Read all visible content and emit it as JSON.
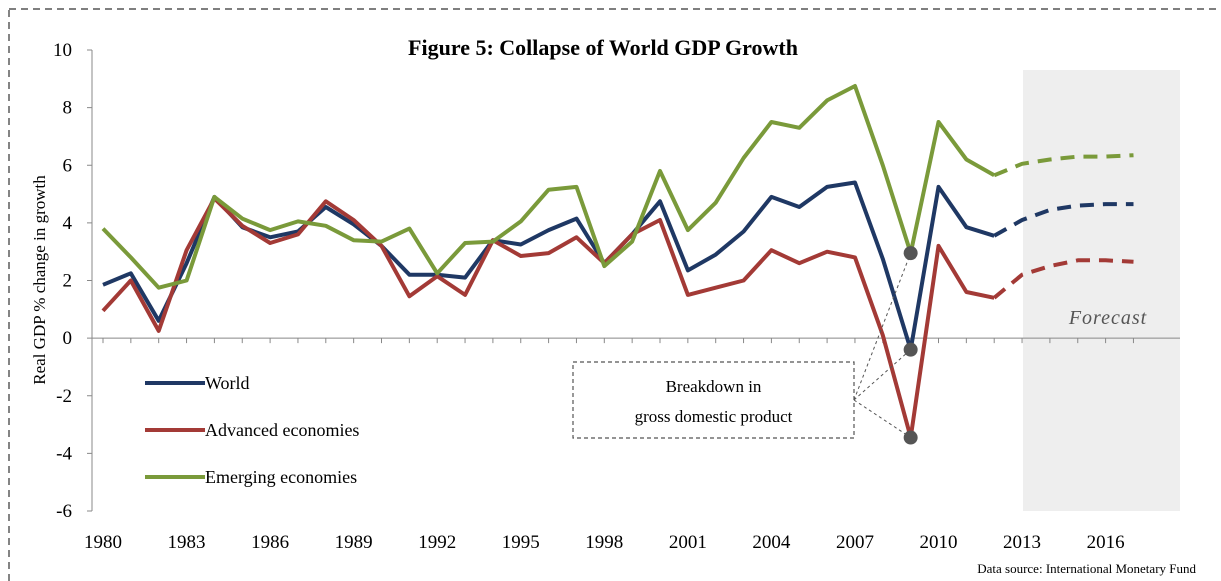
{
  "chart_data": {
    "type": "line",
    "title": "Figure 5: Collapse of World GDP Growth",
    "ylabel": "Real GDP % change in growth",
    "xlabel": "",
    "ylim": [
      -6,
      10
    ],
    "yticks": [
      -6,
      -4,
      -2,
      0,
      2,
      4,
      6,
      8,
      10
    ],
    "xlim": [
      1980,
      2017
    ],
    "xticks": [
      1980,
      1983,
      1986,
      1989,
      1992,
      1995,
      1998,
      2001,
      2004,
      2007,
      2010,
      2013,
      2016
    ],
    "forecast_start": 2012,
    "forecast_label": "Forecast",
    "grid": false,
    "legend_position": "lower-left",
    "x": [
      1980,
      1981,
      1982,
      1983,
      1984,
      1985,
      1986,
      1987,
      1988,
      1989,
      1990,
      1991,
      1992,
      1993,
      1994,
      1995,
      1996,
      1997,
      1998,
      1999,
      2000,
      2001,
      2002,
      2003,
      2004,
      2005,
      2006,
      2007,
      2008,
      2009,
      2010,
      2011,
      2012,
      2013,
      2014,
      2015,
      2016,
      2017
    ],
    "series": [
      {
        "name": "World",
        "color": "#1f3864",
        "values": [
          1.85,
          2.25,
          0.6,
          2.6,
          4.9,
          3.85,
          3.5,
          3.7,
          4.55,
          3.95,
          3.2,
          2.2,
          2.2,
          2.1,
          3.4,
          3.25,
          3.75,
          4.15,
          2.6,
          3.6,
          4.75,
          2.35,
          2.9,
          3.7,
          4.9,
          4.55,
          5.25,
          5.4,
          2.75,
          -0.4,
          5.25,
          3.85,
          3.55,
          4.1,
          4.45,
          4.6,
          4.65,
          4.65
        ]
      },
      {
        "name": "Advanced economies",
        "color": "#a33a36",
        "values": [
          0.95,
          2.0,
          0.25,
          3.05,
          4.85,
          3.9,
          3.3,
          3.6,
          4.75,
          4.1,
          3.2,
          1.45,
          2.15,
          1.5,
          3.4,
          2.85,
          2.95,
          3.5,
          2.6,
          3.6,
          4.1,
          1.5,
          1.75,
          2.0,
          3.05,
          2.6,
          3.0,
          2.8,
          0.1,
          -3.45,
          3.2,
          1.6,
          1.4,
          2.2,
          2.5,
          2.7,
          2.7,
          2.65
        ]
      },
      {
        "name": "Emerging economies",
        "color": "#7a9a3a",
        "values": [
          3.8,
          2.8,
          1.75,
          2.0,
          4.9,
          4.15,
          3.75,
          4.05,
          3.9,
          3.4,
          3.35,
          3.8,
          2.25,
          3.3,
          3.35,
          4.05,
          5.15,
          5.25,
          2.5,
          3.35,
          5.8,
          3.75,
          4.7,
          6.25,
          7.5,
          7.3,
          8.25,
          8.75,
          6.0,
          2.95,
          7.5,
          6.2,
          5.65,
          6.05,
          6.2,
          6.3,
          6.3,
          6.35
        ]
      }
    ],
    "annotation": {
      "text_line1": "Breakdown in",
      "text_line2": "gross domestic product",
      "target_year": 2009,
      "target_values": [
        2.95,
        -0.4,
        -3.45
      ]
    },
    "source": "Data source: International Monetary Fund"
  }
}
